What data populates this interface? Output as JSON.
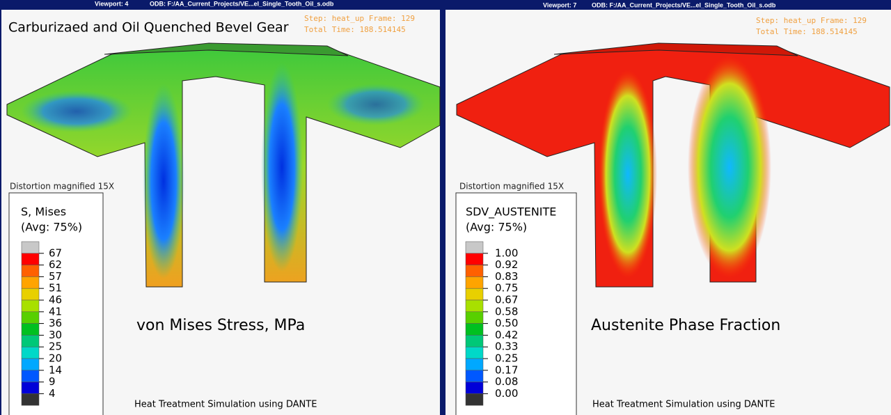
{
  "viewports": [
    {
      "header": {
        "viewport": "Viewport: 4",
        "odb": "ODB: F:/AA_Current_Projects/VE...el_Single_Tooth_Oil_s.odb"
      },
      "title": "Carburizaed and Oil Quenched Bevel Gear",
      "step": "Step: heat_up   Frame: 129",
      "total_time": "Total Time: 188.514145",
      "distortion": "Distortion magnified 15X",
      "legend": {
        "title": "S, Mises",
        "subtitle": "(Avg: 75%)",
        "labels": [
          "67",
          "62",
          "57",
          "51",
          "46",
          "41",
          "36",
          "30",
          "25",
          "20",
          "14",
          "9",
          "4"
        ]
      },
      "caption": "von Mises Stress, MPa",
      "footer": "Heat Treatment Simulation using DANTE"
    },
    {
      "header": {
        "viewport": "Viewport: 7",
        "odb": "ODB: F:/AA_Current_Projects/VE...el_Single_Tooth_Oil_s.odb"
      },
      "step": "Step: heat_up   Frame: 129",
      "total_time": "Total Time: 188.514145",
      "distortion": "Distortion magnified 15X",
      "legend": {
        "title": "SDV_AUSTENITE",
        "subtitle": "(Avg: 75%)",
        "labels": [
          "1.00",
          "0.92",
          "0.83",
          "0.75",
          "0.67",
          "0.58",
          "0.50",
          "0.42",
          "0.33",
          "0.25",
          "0.17",
          "0.08",
          "0.00"
        ]
      },
      "caption": "Austenite Phase Fraction",
      "footer": "Heat Treatment Simulation using DANTE"
    }
  ]
}
